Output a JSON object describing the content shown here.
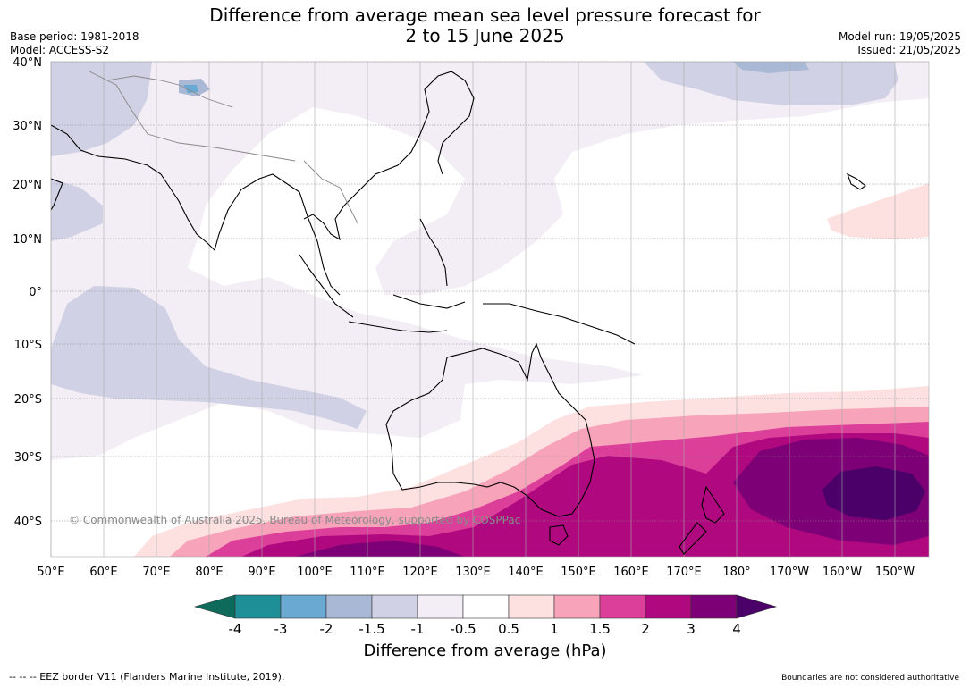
{
  "title_line1": "Difference from average mean sea level pressure forecast for",
  "title_line2": "2 to 15 June 2025",
  "base_period": "Base period: 1981-2018",
  "model": "Model: ACCESS-S2",
  "model_run": "Model run: 19/05/2025",
  "issued": "Issued: 21/05/2025",
  "copyright": "© Commonwealth of Australia 2025, Bureau of Meteorology, supported by COSPPac",
  "lat_labels": [
    "40°N",
    "30°N",
    "20°N",
    "10°N",
    "0°",
    "10°S",
    "20°S",
    "30°S",
    "40°S"
  ],
  "lon_labels": [
    "50°E",
    "60°E",
    "70°E",
    "80°E",
    "90°E",
    "100°E",
    "110°E",
    "120°E",
    "130°E",
    "140°E",
    "150°E",
    "160°E",
    "170°E",
    "180°",
    "170°W",
    "160°W",
    "150°W"
  ],
  "colorbar": {
    "label": "Difference from average (hPa)",
    "ticks": [
      "-4",
      "-3",
      "-2",
      "-1.5",
      "-1",
      "-0.5",
      "0.5",
      "1",
      "1.5",
      "2",
      "3",
      "4"
    ],
    "colors": {
      "below_-4": "#0e6b5c",
      "-4_-3": "#1f8f97",
      "-3_-2": "#6aa9d2",
      "-2_-1.5": "#a9b9d5",
      "-1.5_-1": "#d0d1e4",
      "-1_-0.5": "#f3eef6",
      "-0.5_0.5": "#ffffff",
      "0.5_1": "#fde0e0",
      "1_1.5": "#f7a3ba",
      "1.5_2": "#dc3f99",
      "2_3": "#b0087f",
      "3_4": "#7e0076",
      "above_4": "#4a0068"
    }
  },
  "footer_left": "--  --  -- EEZ border V11 (Flanders Marine Institute, 2019).",
  "footer_right": "Boundaries are not considered authoritative"
}
